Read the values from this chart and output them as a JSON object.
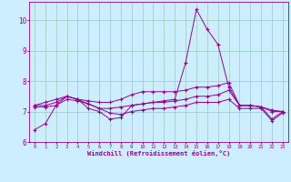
{
  "background_color": "#cceeff",
  "plot_bg_color": "#cceeff",
  "grid_color": "#99ccbb",
  "line_color": "#990099",
  "marker": "+",
  "xlabel": "Windchill (Refroidissement éolien,°C)",
  "xlim": [
    -0.5,
    23.5
  ],
  "ylim": [
    6.0,
    10.6
  ],
  "yticks": [
    6,
    7,
    8,
    9,
    10
  ],
  "xticks": [
    0,
    1,
    2,
    3,
    4,
    5,
    6,
    7,
    8,
    9,
    10,
    11,
    12,
    13,
    14,
    15,
    16,
    17,
    18,
    19,
    20,
    21,
    22,
    23
  ],
  "series": [
    [
      6.4,
      6.6,
      7.2,
      7.5,
      7.4,
      7.1,
      7.0,
      6.75,
      6.8,
      7.2,
      7.25,
      7.3,
      7.35,
      7.4,
      8.6,
      10.35,
      9.7,
      9.2,
      7.8,
      7.2,
      7.2,
      7.15,
      6.75,
      7.0
    ],
    [
      7.2,
      7.2,
      7.3,
      7.5,
      7.4,
      7.25,
      7.1,
      7.1,
      7.15,
      7.2,
      7.25,
      7.3,
      7.3,
      7.35,
      7.4,
      7.5,
      7.5,
      7.55,
      7.7,
      7.2,
      7.2,
      7.15,
      7.05,
      7.0
    ],
    [
      7.15,
      7.15,
      7.2,
      7.4,
      7.35,
      7.25,
      7.1,
      6.95,
      6.9,
      7.0,
      7.05,
      7.1,
      7.1,
      7.15,
      7.2,
      7.3,
      7.3,
      7.3,
      7.4,
      7.1,
      7.1,
      7.1,
      6.7,
      6.95
    ],
    [
      7.2,
      7.3,
      7.4,
      7.5,
      7.4,
      7.35,
      7.3,
      7.3,
      7.4,
      7.55,
      7.65,
      7.65,
      7.65,
      7.65,
      7.7,
      7.8,
      7.8,
      7.85,
      7.95,
      7.2,
      7.2,
      7.15,
      7.0,
      7.0
    ]
  ]
}
